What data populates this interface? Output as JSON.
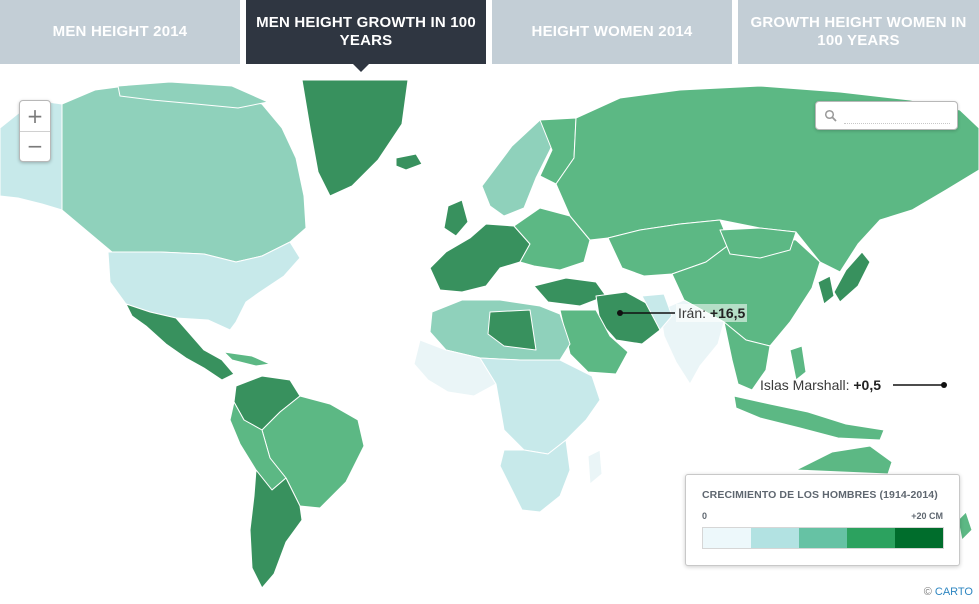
{
  "tabs": [
    {
      "label": "MEN HEIGHT 2014"
    },
    {
      "label": "MEN HEIGHT GROWTH IN 100 YEARS"
    },
    {
      "label": "HEIGHT WOMEN 2014"
    },
    {
      "label": "GROWTH HEIGHT WOMEN IN 100 YEARS"
    }
  ],
  "active_tab": 1,
  "zoom": {
    "in_label": "+",
    "out_label": "−"
  },
  "search": {
    "placeholder": "",
    "icon": "search-icon"
  },
  "annotations": {
    "iran": {
      "label": "Irán: ",
      "value": "+16,5"
    },
    "marshall": {
      "label": "Islas Marshall: ",
      "value": "+0,5"
    }
  },
  "legend": {
    "title": "CRECIMIENTO DE LOS HOMBRES (1914-2014)",
    "min_label": "0",
    "max_label": "+20 CM",
    "colors": [
      "#edf8fb",
      "#b2e2e2",
      "#66c2a4",
      "#2ca25f",
      "#006d2c"
    ]
  },
  "credit": {
    "prefix": "© ",
    "brand": "CARTO"
  },
  "map_colors": {
    "lightest": "#eaf5f7",
    "light": "#c7e9ea",
    "mid_light": "#8fd1bb",
    "mid": "#5cb884",
    "dark": "#38915e"
  }
}
